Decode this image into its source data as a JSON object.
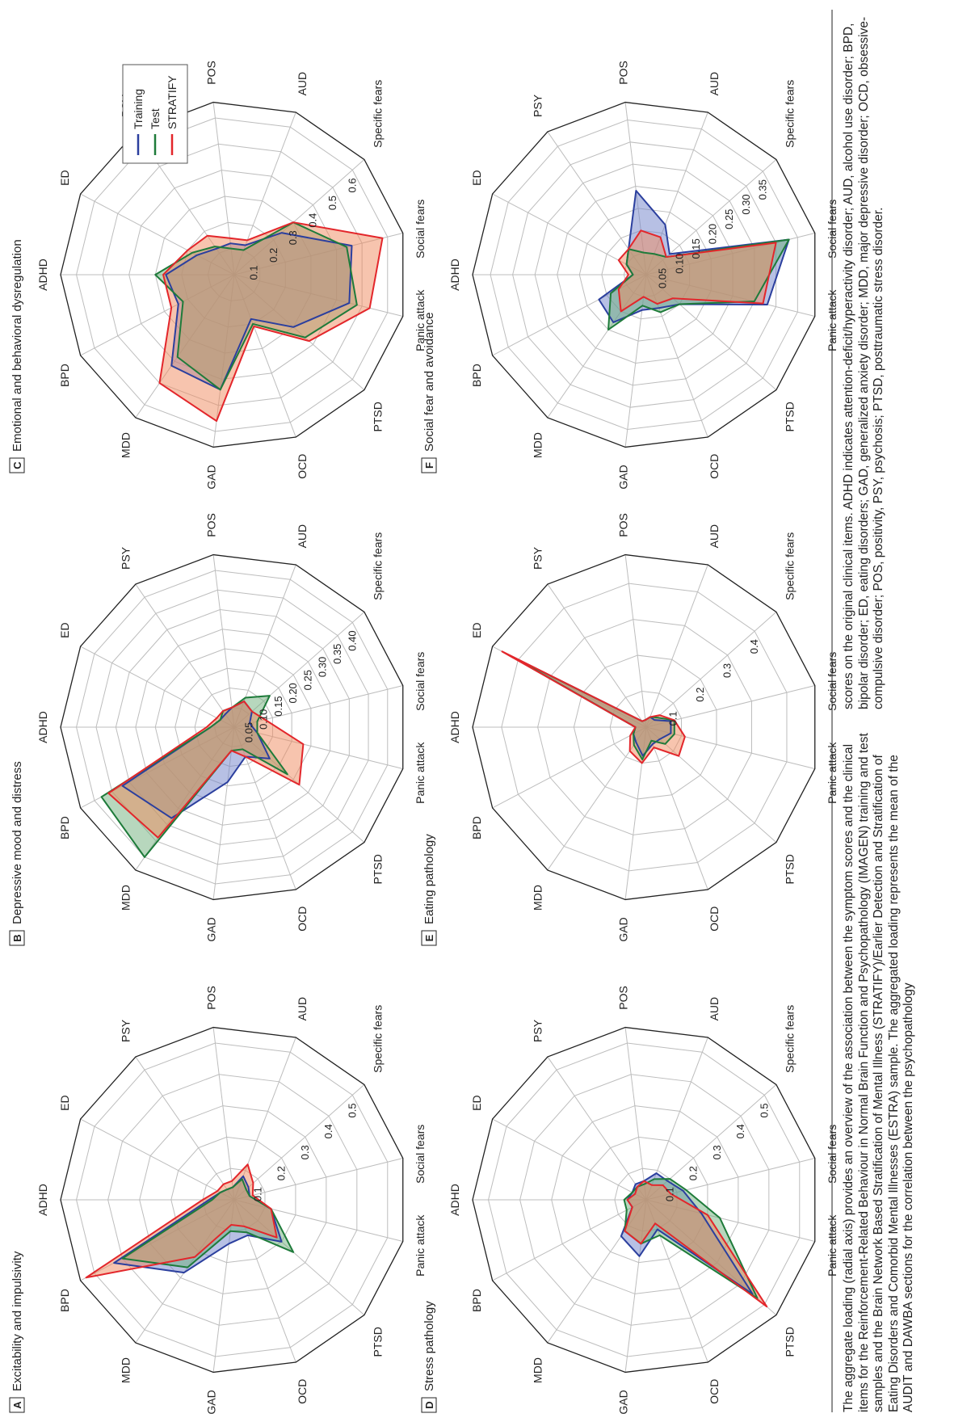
{
  "figure": {
    "caption_part1": "The aggregate loading (radial axis) provides an overview of the association between the symptom scores and the clinical items for the Reinforcement-Related Behaviour in Normal Brain Function and Psychopathology (IMAGEN) training and test samples and the Brain Network Based Stratification of Mental Illness (STRATIFY)/Earlier Detection and Stratification of Eating Disorders and Comorbid Mental Illnesses (ESTRA) sample. The aggregated loading represents the mean of the AUDIT and DAWBA sections for the correlation between the psychopathology",
    "caption_part2": "scores on the original clinical items. ADHD indicates attention-deficit/hyperactivity disorder; AUD, alcohol use disorder; BPD, bipolar disorder; ED, eating disorders; GAD, generalized anxiety disorder; MDD, major depressive disorder; OCD, obsessive-compulsive disorder; POS, positivity, PSY, psychosis; PTSD, posttraumatic stress disorder."
  },
  "legend": {
    "items": [
      {
        "label": "Training",
        "color": "#2b3f9e"
      },
      {
        "label": "Test",
        "color": "#1e7b3a"
      },
      {
        "label": "STRATIFY",
        "color": "#e3262b"
      }
    ]
  },
  "chart_data": [
    {
      "type": "radar",
      "panel": "A",
      "title": "Excitability and impulsivity",
      "categories": [
        "ADHD",
        "ED",
        "PSY",
        "POS",
        "AUD",
        "Specific fears",
        "Social fears",
        "Panic attack",
        "PTSD",
        "OCD",
        "GAD",
        "MDD",
        "BPD"
      ],
      "rmax": 0.55,
      "ticks": [
        0.1,
        0.2,
        0.3,
        0.4,
        0.5
      ],
      "tick_labels": [
        "0.1",
        "0.2",
        "0.3",
        "0.4",
        "0.5"
      ],
      "series": [
        {
          "name": "Training",
          "values": [
            0.08,
            0.05,
            0.04,
            0.04,
            0.08,
            0.06,
            0.05,
            0.12,
            0.2,
            0.12,
            0.14,
            0.28,
            0.43
          ]
        },
        {
          "name": "Test",
          "values": [
            0.07,
            0.05,
            0.04,
            0.04,
            0.07,
            0.05,
            0.05,
            0.12,
            0.25,
            0.11,
            0.1,
            0.26,
            0.4
          ]
        },
        {
          "name": "STRATIFY",
          "values": [
            0.1,
            0.06,
            0.06,
            0.06,
            0.12,
            0.08,
            0.06,
            0.12,
            0.18,
            0.09,
            0.08,
            0.22,
            0.53
          ]
        }
      ]
    },
    {
      "type": "radar",
      "panel": "B",
      "title": "Depressive mood and distress",
      "categories": [
        "ADHD",
        "ED",
        "PSY",
        "POS",
        "AUD",
        "Specific fears",
        "Social fears",
        "Panic attack",
        "PTSD",
        "OCD",
        "GAD",
        "MDD",
        "BPD"
      ],
      "rmax": 0.44,
      "ticks": [
        0.05,
        0.1,
        0.15,
        0.2,
        0.25,
        0.3,
        0.35,
        0.4
      ],
      "tick_labels": [
        "0.05",
        "0.10",
        "0.15",
        "0.20",
        "0.25",
        "0.30",
        "0.35",
        "0.40"
      ],
      "series": [
        {
          "name": "Training",
          "values": [
            0.06,
            0.04,
            0.04,
            0.05,
            0.07,
            0.06,
            0.04,
            0.06,
            0.12,
            0.08,
            0.14,
            0.28,
            0.32
          ]
        },
        {
          "name": "Test",
          "values": [
            0.06,
            0.04,
            0.05,
            0.05,
            0.08,
            0.12,
            0.06,
            0.06,
            0.18,
            0.06,
            0.06,
            0.4,
            0.38
          ]
        },
        {
          "name": "STRATIFY",
          "values": [
            0.07,
            0.05,
            0.05,
            0.05,
            0.07,
            0.06,
            0.08,
            0.18,
            0.22,
            0.08,
            0.06,
            0.34,
            0.36
          ]
        }
      ]
    },
    {
      "type": "radar",
      "panel": "C",
      "title": "Emotional and behavioral dysregulation",
      "categories": [
        "ADHD",
        "ED",
        "PSY",
        "POS",
        "AUD",
        "Specific fears",
        "Social fears",
        "Panic attack",
        "PTSD",
        "OCD",
        "GAD",
        "MDD",
        "BPD"
      ],
      "rmax": 0.66,
      "ticks": [
        0.1,
        0.2,
        0.3,
        0.4,
        0.5,
        0.6
      ],
      "tick_labels": [
        "0.1",
        "0.2",
        "0.3",
        "0.4",
        "0.5",
        "0.6"
      ],
      "series": [
        {
          "name": "Training",
          "values": [
            0.26,
            0.16,
            0.12,
            0.12,
            0.12,
            0.24,
            0.46,
            0.45,
            0.3,
            0.18,
            0.44,
            0.42,
            0.24
          ]
        },
        {
          "name": "Test",
          "values": [
            0.3,
            0.18,
            0.13,
            0.1,
            0.1,
            0.3,
            0.44,
            0.48,
            0.36,
            0.2,
            0.44,
            0.38,
            0.22
          ]
        },
        {
          "name": "STRATIFY",
          "values": [
            0.27,
            0.2,
            0.18,
            0.14,
            0.14,
            0.3,
            0.58,
            0.53,
            0.38,
            0.21,
            0.56,
            0.5,
            0.27
          ]
        }
      ]
    },
    {
      "type": "radar",
      "panel": "D",
      "title": "Stress pathology",
      "categories": [
        "ADHD",
        "ED",
        "PSY",
        "POS",
        "AUD",
        "Specific fears",
        "Social fears",
        "Panic attack",
        "PTSD",
        "OCD",
        "GAD",
        "MDD",
        "BPD"
      ],
      "rmax": 0.55,
      "ticks": [
        0.1,
        0.2,
        0.3,
        0.4,
        0.5
      ],
      "tick_labels": [
        "0.1",
        "0.2",
        "0.3",
        "0.4",
        "0.5"
      ],
      "series": [
        {
          "name": "Training",
          "values": [
            0.06,
            0.05,
            0.06,
            0.06,
            0.09,
            0.09,
            0.12,
            0.18,
            0.45,
            0.1,
            0.18,
            0.14,
            0.05
          ]
        },
        {
          "name": "Test",
          "values": [
            0.07,
            0.05,
            0.05,
            0.05,
            0.07,
            0.1,
            0.13,
            0.24,
            0.47,
            0.12,
            0.14,
            0.12,
            0.07
          ]
        },
        {
          "name": "STRATIFY",
          "values": [
            0.06,
            0.04,
            0.05,
            0.06,
            0.05,
            0.07,
            0.08,
            0.2,
            0.51,
            0.08,
            0.14,
            0.12,
            0.05
          ]
        }
      ]
    },
    {
      "type": "radar",
      "panel": "E",
      "title": "Eating pathology",
      "categories": [
        "ADHD",
        "ED",
        "PSY",
        "POS",
        "AUD",
        "Specific fears",
        "Social fears",
        "Panic attack",
        "PTSD",
        "OCD",
        "GAD",
        "MDD",
        "BPD"
      ],
      "rmax": 0.48,
      "ticks": [
        0.1,
        0.2,
        0.3,
        0.4
      ],
      "tick_labels": [
        "0.1",
        "0.2",
        "0.3",
        "0.4"
      ],
      "series": [
        {
          "name": "Training",
          "values": [
            0.03,
            0.43,
            0.02,
            0.02,
            0.03,
            0.03,
            0.07,
            0.07,
            0.05,
            0.05,
            0.08,
            0.05,
            0.04
          ]
        },
        {
          "name": "Test",
          "values": [
            0.03,
            0.42,
            0.02,
            0.02,
            0.03,
            0.04,
            0.08,
            0.08,
            0.07,
            0.04,
            0.09,
            0.06,
            0.04
          ]
        },
        {
          "name": "STRATIFY",
          "values": [
            0.03,
            0.45,
            0.02,
            0.02,
            0.03,
            0.05,
            0.08,
            0.11,
            0.12,
            0.06,
            0.1,
            0.08,
            0.05
          ]
        }
      ]
    },
    {
      "type": "radar",
      "panel": "F",
      "title": "Social fear and avoidance",
      "categories": [
        "ADHD",
        "ED",
        "PSY",
        "POS",
        "AUD",
        "Specific fears",
        "Social fears",
        "Panic attack",
        "PTSD",
        "OCD",
        "GAD",
        "MDD",
        "BPD"
      ],
      "rmax": 0.39,
      "ticks": [
        0.05,
        0.1,
        0.15,
        0.2,
        0.25,
        0.3,
        0.35
      ],
      "tick_labels": [
        "0.05",
        "0.10",
        "0.15",
        "0.20",
        "0.25",
        "0.30",
        "0.35"
      ],
      "series": [
        {
          "name": "Training",
          "values": [
            0.03,
            0.05,
            0.07,
            0.19,
            0.12,
            0.07,
            0.33,
            0.28,
            0.1,
            0.08,
            0.08,
            0.13,
            0.12
          ]
        },
        {
          "name": "Test",
          "values": [
            0.03,
            0.05,
            0.07,
            0.05,
            0.05,
            0.06,
            0.33,
            0.25,
            0.1,
            0.09,
            0.07,
            0.15,
            0.09
          ]
        },
        {
          "name": "STRATIFY",
          "values": [
            0.04,
            0.07,
            0.07,
            0.1,
            0.09,
            0.06,
            0.3,
            0.27,
            0.08,
            0.07,
            0.05,
            0.1,
            0.07
          ]
        }
      ]
    }
  ]
}
